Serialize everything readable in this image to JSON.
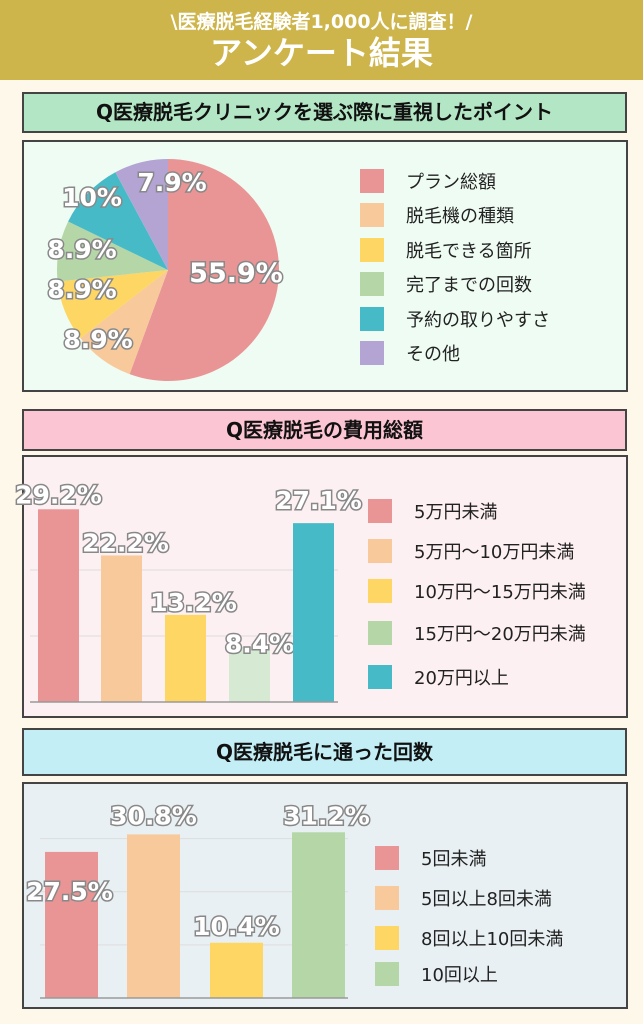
{
  "banner": {
    "subtitle": "\\医療脱毛経験者1,000人に調査！/",
    "title": "アンケート結果"
  },
  "chart_data": [
    {
      "type": "pie",
      "title": "Q医療脱毛クリニックを選ぶ際に重視したポイント",
      "categories": [
        "プラン総額",
        "脱毛機の種類",
        "脱毛できる箇所",
        "完了までの回数",
        "予約の取りやすさ",
        "その他"
      ],
      "values": [
        55.9,
        8.9,
        8.9,
        8.9,
        10,
        7.9
      ],
      "labels": [
        "55.9%",
        "8.9%",
        "8.9%",
        "8.9%",
        "10%",
        "7.9%"
      ],
      "colors": [
        "#e99596",
        "#f8c99a",
        "#fed663",
        "#b5d7a8",
        "#46bac6",
        "#b3a4d4"
      ],
      "legend": "right"
    },
    {
      "type": "bar",
      "title": "Q医療脱毛の費用総額",
      "categories": [
        "5万円未満",
        "5万円〜10万円未満",
        "10万円〜15万円未満",
        "15万円〜20万円未満",
        "20万円以上"
      ],
      "values": [
        29.2,
        22.2,
        13.2,
        8.4,
        27.1
      ],
      "labels": [
        "29.2%",
        "22.2%",
        "13.2%",
        "8.4%",
        "27.1%"
      ],
      "colors": [
        "#e99596",
        "#f8c99a",
        "#fed663",
        "#d6e9d3",
        "#46bac6"
      ],
      "legend_colors": [
        "#e99596",
        "#f8c99a",
        "#fed663",
        "#b5d7a8",
        "#46bac6"
      ],
      "ylim": [
        0,
        30
      ],
      "grid": true,
      "legend": "right"
    },
    {
      "type": "bar",
      "title": "Q医療脱毛に通った回数",
      "categories": [
        "5回未満",
        "5回以上8回未満",
        "8回以上10回未満",
        "10回以上"
      ],
      "values": [
        27.5,
        30.8,
        10.4,
        31.2
      ],
      "labels": [
        "27.5%",
        "30.8%",
        "10.4%",
        "31.2%"
      ],
      "colors": [
        "#e99596",
        "#f8c99a",
        "#fed663",
        "#b5d7a8"
      ],
      "legend_colors": [
        "#e99596",
        "#f8c99a",
        "#fed663",
        "#b5d7a8"
      ],
      "ylim": [
        0,
        32
      ],
      "grid": true,
      "legend": "right"
    }
  ]
}
